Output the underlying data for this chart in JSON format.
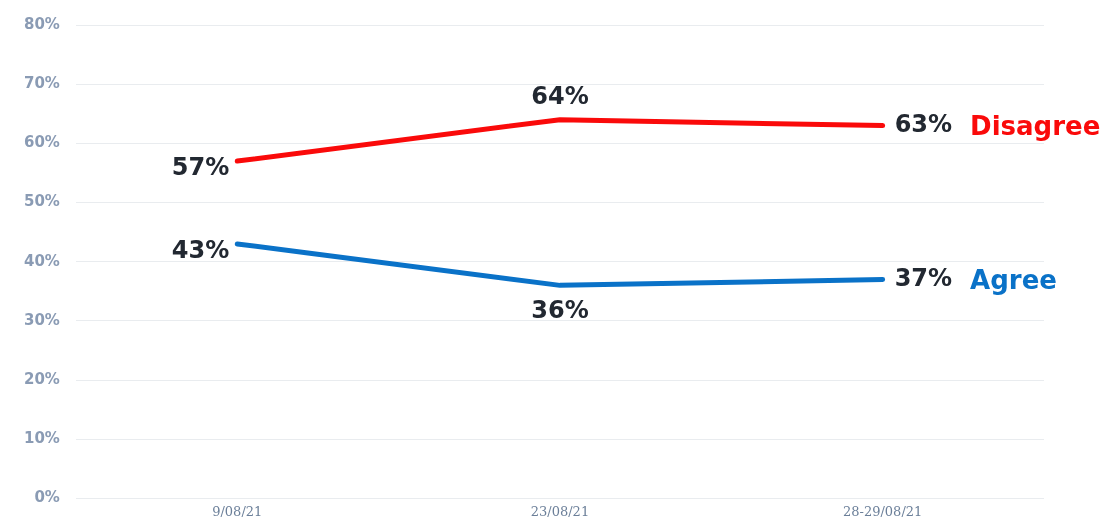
{
  "chart_data": {
    "type": "line",
    "categories": [
      "9/08/21",
      "23/08/21",
      "28-29/08/21"
    ],
    "series": [
      {
        "name": "Disagree",
        "color": "#fa0a0a",
        "values": [
          57,
          64,
          63
        ],
        "value_labels": [
          "57%",
          "64%",
          "63%"
        ]
      },
      {
        "name": "Agree",
        "color": "#0a72c8",
        "values": [
          43,
          36,
          37
        ],
        "value_labels": [
          "43%",
          "36%",
          "37%"
        ]
      }
    ],
    "ylim": [
      0,
      80
    ],
    "yticks": [
      {
        "value": 0,
        "label": "0%"
      },
      {
        "value": 10,
        "label": "10%"
      },
      {
        "value": 20,
        "label": "20%"
      },
      {
        "value": 30,
        "label": "30%"
      },
      {
        "value": 40,
        "label": "40%"
      },
      {
        "value": 50,
        "label": "50%"
      },
      {
        "value": 60,
        "label": "60%"
      },
      {
        "value": 70,
        "label": "70%"
      },
      {
        "value": 80,
        "label": "80%"
      }
    ],
    "grid": "y",
    "legend": false,
    "marker": "none",
    "line_style": "solid"
  }
}
